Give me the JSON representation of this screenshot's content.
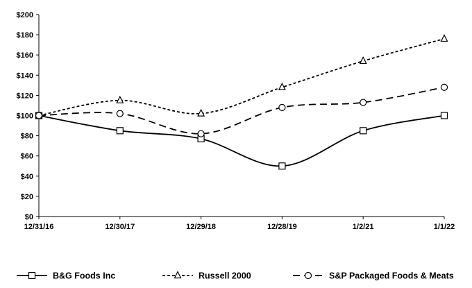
{
  "chart_data": {
    "type": "line",
    "categories": [
      "12/31/16",
      "12/30/17",
      "12/29/18",
      "12/28/19",
      "1/2/21",
      "1/1/22"
    ],
    "series": [
      {
        "name": "B&G Foods Inc",
        "values": [
          100,
          85,
          77,
          50,
          85,
          100
        ],
        "marker": "square",
        "dash": "solid",
        "color": "#000000"
      },
      {
        "name": "Russell 2000",
        "values": [
          100,
          115,
          102,
          128,
          154,
          176
        ],
        "marker": "triangle",
        "dash": "dotted",
        "color": "#000000"
      },
      {
        "name": "S&P Packaged Foods & Meats",
        "values": [
          100,
          102,
          82,
          108,
          113,
          128
        ],
        "marker": "circle",
        "dash": "dashed",
        "color": "#000000"
      }
    ],
    "y_ticks": [
      "$0",
      "$20",
      "$40",
      "$60",
      "$80",
      "$100",
      "$120",
      "$140",
      "$160",
      "$180",
      "$200"
    ],
    "ylim": [
      0,
      200
    ],
    "title": "",
    "xlabel": "",
    "ylabel": "",
    "grid": false,
    "legend_position": "bottom"
  }
}
